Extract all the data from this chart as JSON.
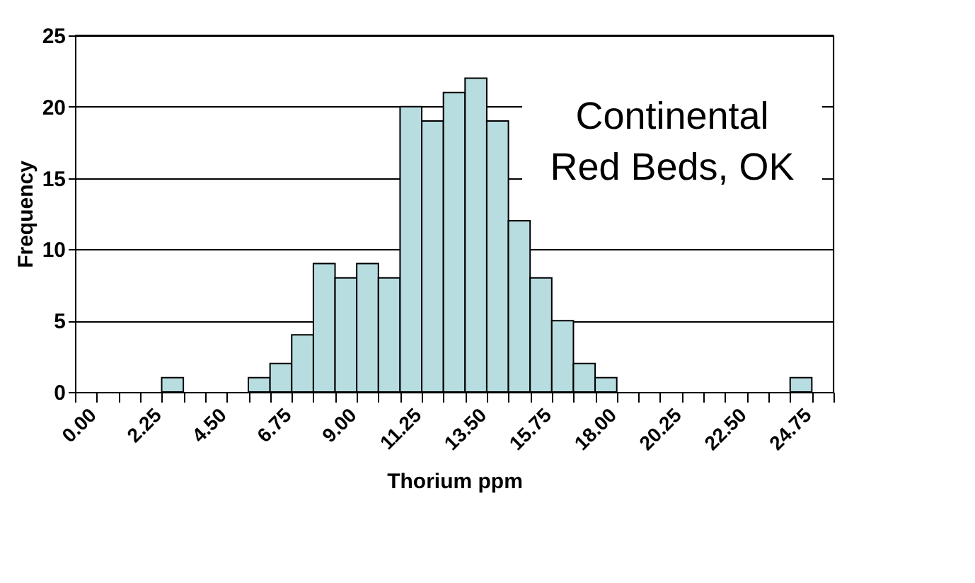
{
  "chart_data": {
    "type": "bar",
    "xlabel": "Thorium ppm",
    "ylabel": "Frequency",
    "categories": [
      "0.00",
      null,
      null,
      "2.25",
      null,
      null,
      "4.50",
      null,
      null,
      "6.75",
      null,
      null,
      "9.00",
      null,
      null,
      "11.25",
      null,
      null,
      "13.50",
      null,
      null,
      "15.75",
      null,
      null,
      "18.00",
      null,
      null,
      "20.25",
      null,
      null,
      "22.50",
      null,
      null,
      "24.75",
      null
    ],
    "values": [
      0,
      0,
      0,
      0,
      1,
      0,
      0,
      0,
      1,
      2,
      4,
      9,
      8,
      9,
      8,
      20,
      19,
      21,
      22,
      19,
      12,
      8,
      5,
      2,
      1,
      0,
      0,
      0,
      0,
      0,
      0,
      0,
      0,
      1,
      0
    ],
    "color": "#b7dde0",
    "ylim": [
      0,
      25
    ],
    "yticks": [
      0,
      5,
      10,
      15,
      20,
      25
    ],
    "grid": "y",
    "annotations": [
      "Continental\nRed Beds, OK"
    ]
  }
}
